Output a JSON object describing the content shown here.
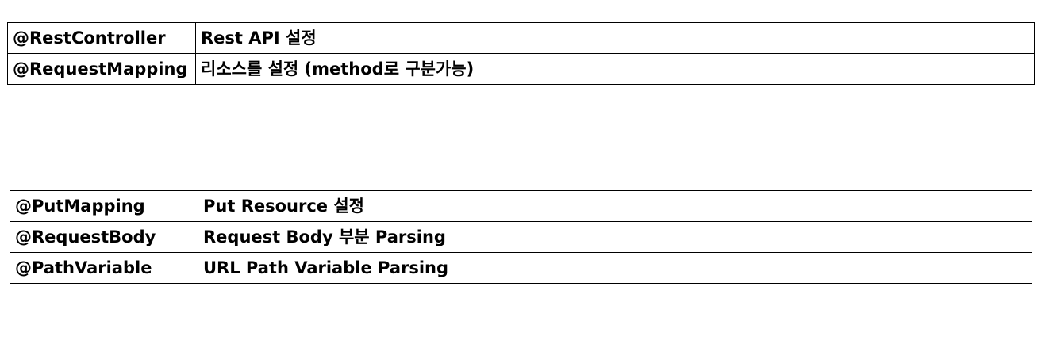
{
  "tables": [
    {
      "rows": [
        {
          "annotation": "@RestController",
          "description": "Rest API 설정"
        },
        {
          "annotation": "@RequestMapping",
          "description": "리소스를 설정 (method로 구분가능)"
        }
      ]
    },
    {
      "rows": [
        {
          "annotation": "@PutMapping",
          "description": "Put Resource 설정"
        },
        {
          "annotation": "@RequestBody",
          "description": "Request Body 부분 Parsing"
        },
        {
          "annotation": "@PathVariable",
          "description": "URL Path Variable Parsing"
        }
      ]
    }
  ]
}
